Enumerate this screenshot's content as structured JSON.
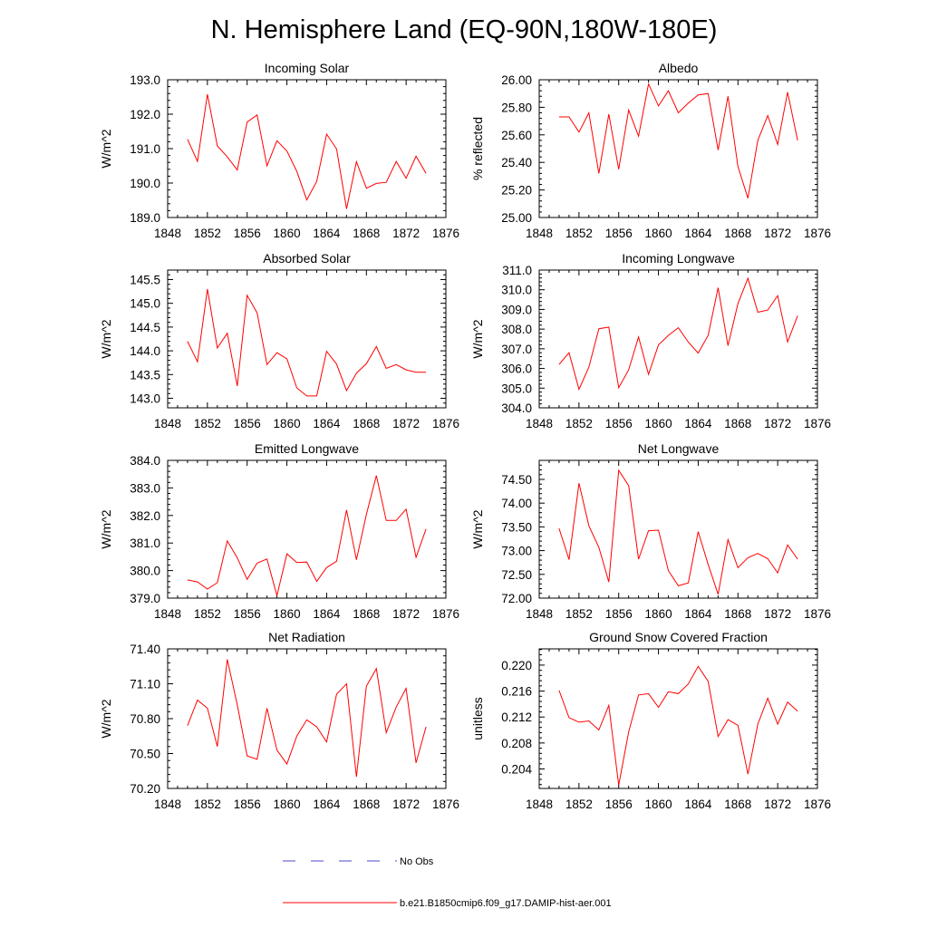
{
  "title": "N. Hemisphere Land (EQ-90N,180W-180E)",
  "chart_data": [
    {
      "type": "line",
      "title": "Incoming Solar",
      "ylabel": "W/m^2",
      "xlabel": "",
      "xlim": [
        1848,
        1876
      ],
      "ylim": [
        189.0,
        193.0
      ],
      "x_ticks": [
        "1848",
        "1852",
        "1856",
        "1860",
        "1864",
        "1868",
        "1872",
        "1876"
      ],
      "y_ticks": [
        "189.0",
        "190.0",
        "191.0",
        "192.0",
        "193.0"
      ],
      "x": [
        1850,
        1851,
        1852,
        1853,
        1854,
        1855,
        1856,
        1857,
        1858,
        1859,
        1860,
        1861,
        1862,
        1863,
        1864,
        1865,
        1866,
        1867,
        1868,
        1869,
        1870,
        1871,
        1872,
        1873,
        1874
      ],
      "series": [
        {
          "name": "b.e21.B1850cmip6.f09_g17.DAMIP-hist-aer.001",
          "color": "#ff0000",
          "values": [
            191.27,
            190.63,
            192.58,
            191.08,
            190.76,
            190.38,
            191.77,
            191.98,
            190.5,
            191.23,
            190.93,
            190.34,
            189.51,
            190.05,
            191.42,
            190.99,
            189.25,
            190.62,
            189.85,
            189.99,
            190.02,
            190.63,
            190.14,
            190.78,
            190.28
          ]
        }
      ]
    },
    {
      "type": "line",
      "title": "Albedo",
      "ylabel": "% reflected",
      "xlabel": "",
      "xlim": [
        1848,
        1876
      ],
      "ylim": [
        25.0,
        26.0
      ],
      "x_ticks": [
        "1848",
        "1852",
        "1856",
        "1860",
        "1864",
        "1868",
        "1872",
        "1876"
      ],
      "y_ticks": [
        "25.00",
        "25.20",
        "25.40",
        "25.60",
        "25.80",
        "26.00"
      ],
      "x": [
        1850,
        1851,
        1852,
        1853,
        1854,
        1855,
        1856,
        1857,
        1858,
        1859,
        1860,
        1861,
        1862,
        1863,
        1864,
        1865,
        1866,
        1867,
        1868,
        1869,
        1870,
        1871,
        1872,
        1873,
        1874
      ],
      "series": [
        {
          "name": "b.e21.B1850cmip6.f09_g17.DAMIP-hist-aer.001",
          "color": "#ff0000",
          "values": [
            25.73,
            25.73,
            25.62,
            25.76,
            25.32,
            25.75,
            25.35,
            25.78,
            25.59,
            25.97,
            25.81,
            25.92,
            25.76,
            25.83,
            25.89,
            25.9,
            25.49,
            25.88,
            25.37,
            25.14,
            25.56,
            25.74,
            25.53,
            25.91,
            25.56
          ]
        }
      ]
    },
    {
      "type": "line",
      "title": "Absorbed Solar",
      "ylabel": "W/m^2",
      "xlabel": "",
      "xlim": [
        1848,
        1876
      ],
      "ylim": [
        142.8,
        145.7
      ],
      "x_ticks": [
        "1848",
        "1852",
        "1856",
        "1860",
        "1864",
        "1868",
        "1872",
        "1876"
      ],
      "y_ticks": [
        "143.0",
        "143.5",
        "144.0",
        "144.5",
        "145.0",
        "145.5"
      ],
      "x": [
        1850,
        1851,
        1852,
        1853,
        1854,
        1855,
        1856,
        1857,
        1858,
        1859,
        1860,
        1861,
        1862,
        1863,
        1864,
        1865,
        1866,
        1867,
        1868,
        1869,
        1870,
        1871,
        1872,
        1873,
        1874
      ],
      "series": [
        {
          "name": "b.e21.B1850cmip6.f09_g17.DAMIP-hist-aer.001",
          "color": "#ff0000",
          "values": [
            144.2,
            143.77,
            145.3,
            144.06,
            144.37,
            143.26,
            145.17,
            144.8,
            143.71,
            143.96,
            143.83,
            143.22,
            143.05,
            143.05,
            143.99,
            143.72,
            143.16,
            143.53,
            143.73,
            144.09,
            143.63,
            143.71,
            143.6,
            143.55,
            143.55
          ]
        }
      ]
    },
    {
      "type": "line",
      "title": "Incoming Longwave",
      "ylabel": "W/m^2",
      "xlabel": "",
      "xlim": [
        1848,
        1876
      ],
      "ylim": [
        304.0,
        311.0
      ],
      "x_ticks": [
        "1848",
        "1852",
        "1856",
        "1860",
        "1864",
        "1868",
        "1872",
        "1876"
      ],
      "y_ticks": [
        "304.0",
        "305.0",
        "306.0",
        "307.0",
        "308.0",
        "309.0",
        "310.0",
        "311.0"
      ],
      "x": [
        1850,
        1851,
        1852,
        1853,
        1854,
        1855,
        1856,
        1857,
        1858,
        1859,
        1860,
        1861,
        1862,
        1863,
        1864,
        1865,
        1866,
        1867,
        1868,
        1869,
        1870,
        1871,
        1872,
        1873,
        1874
      ],
      "series": [
        {
          "name": "b.e21.B1850cmip6.f09_g17.DAMIP-hist-aer.001",
          "color": "#ff0000",
          "values": [
            306.2,
            306.8,
            304.94,
            306.07,
            308.02,
            308.1,
            305.02,
            305.93,
            307.6,
            305.7,
            307.2,
            307.68,
            308.07,
            307.34,
            306.78,
            307.68,
            310.1,
            307.16,
            309.3,
            310.58,
            308.86,
            308.97,
            309.7,
            307.35,
            308.68
          ]
        }
      ]
    },
    {
      "type": "line",
      "title": "Emitted Longwave",
      "ylabel": "W/m^2",
      "xlabel": "",
      "xlim": [
        1848,
        1876
      ],
      "ylim": [
        379.0,
        384.0
      ],
      "x_ticks": [
        "1848",
        "1852",
        "1856",
        "1860",
        "1864",
        "1868",
        "1872",
        "1876"
      ],
      "y_ticks": [
        "379.0",
        "380.0",
        "381.0",
        "382.0",
        "383.0",
        "384.0"
      ],
      "x": [
        1850,
        1851,
        1852,
        1853,
        1854,
        1855,
        1856,
        1857,
        1858,
        1859,
        1860,
        1861,
        1862,
        1863,
        1864,
        1865,
        1866,
        1867,
        1868,
        1869,
        1870,
        1871,
        1872,
        1873,
        1874
      ],
      "series": [
        {
          "name": "b.e21.B1850cmip6.f09_g17.DAMIP-hist-aer.001",
          "color": "#ff0000",
          "values": [
            379.66,
            379.59,
            379.33,
            379.56,
            381.08,
            380.46,
            379.68,
            380.27,
            380.42,
            379.09,
            380.61,
            380.29,
            380.31,
            379.61,
            380.11,
            380.34,
            382.2,
            380.39,
            382.04,
            383.45,
            381.82,
            381.82,
            382.23,
            380.48,
            381.51
          ]
        }
      ]
    },
    {
      "type": "line",
      "title": "Net Longwave",
      "ylabel": "W/m^2",
      "xlabel": "",
      "xlim": [
        1848,
        1876
      ],
      "ylim": [
        72.0,
        74.9
      ],
      "x_ticks": [
        "1848",
        "1852",
        "1856",
        "1860",
        "1864",
        "1868",
        "1872",
        "1876"
      ],
      "y_ticks": [
        "72.00",
        "72.50",
        "73.00",
        "73.50",
        "74.00",
        "74.50"
      ],
      "x": [
        1850,
        1851,
        1852,
        1853,
        1854,
        1855,
        1856,
        1857,
        1858,
        1859,
        1860,
        1861,
        1862,
        1863,
        1864,
        1865,
        1866,
        1867,
        1868,
        1869,
        1870,
        1871,
        1872,
        1873,
        1874
      ],
      "series": [
        {
          "name": "b.e21.B1850cmip6.f09_g17.DAMIP-hist-aer.001",
          "color": "#ff0000",
          "values": [
            73.47,
            72.81,
            74.42,
            73.52,
            73.07,
            72.34,
            74.69,
            74.37,
            72.82,
            73.42,
            73.43,
            72.58,
            72.26,
            72.32,
            73.4,
            72.71,
            72.08,
            73.23,
            72.64,
            72.85,
            72.94,
            72.83,
            72.53,
            73.12,
            72.82
          ]
        }
      ]
    },
    {
      "type": "line",
      "title": "Net Radiation",
      "ylabel": "W/m^2",
      "xlabel": "",
      "xlim": [
        1848,
        1876
      ],
      "ylim": [
        70.2,
        71.4
      ],
      "x_ticks": [
        "1848",
        "1852",
        "1856",
        "1860",
        "1864",
        "1868",
        "1872",
        "1876"
      ],
      "y_ticks": [
        "70.20",
        "70.50",
        "70.80",
        "71.10",
        "71.40"
      ],
      "x": [
        1850,
        1851,
        1852,
        1853,
        1854,
        1855,
        1856,
        1857,
        1858,
        1859,
        1860,
        1861,
        1862,
        1863,
        1864,
        1865,
        1866,
        1867,
        1868,
        1869,
        1870,
        1871,
        1872,
        1873,
        1874
      ],
      "series": [
        {
          "name": "b.e21.B1850cmip6.f09_g17.DAMIP-hist-aer.001",
          "color": "#ff0000",
          "values": [
            70.74,
            70.96,
            70.89,
            70.56,
            71.31,
            70.92,
            70.48,
            70.45,
            70.89,
            70.53,
            70.41,
            70.65,
            70.79,
            70.73,
            70.6,
            71.01,
            71.1,
            70.3,
            71.08,
            71.23,
            70.68,
            70.9,
            71.06,
            70.42,
            70.73
          ]
        }
      ]
    },
    {
      "type": "line",
      "title": "Ground Snow Covered Fraction",
      "ylabel": "unitless",
      "xlabel": "",
      "xlim": [
        1848,
        1876
      ],
      "ylim": [
        0.201,
        0.2225
      ],
      "x_ticks": [
        "1848",
        "1852",
        "1856",
        "1860",
        "1864",
        "1868",
        "1872",
        "1876"
      ],
      "y_ticks": [
        "0.204",
        "0.208",
        "0.212",
        "0.216",
        "0.220"
      ],
      "x": [
        1850,
        1851,
        1852,
        1853,
        1854,
        1855,
        1856,
        1857,
        1858,
        1859,
        1860,
        1861,
        1862,
        1863,
        1864,
        1865,
        1866,
        1867,
        1868,
        1869,
        1870,
        1871,
        1872,
        1873,
        1874
      ],
      "series": [
        {
          "name": "b.e21.B1850cmip6.f09_g17.DAMIP-hist-aer.001",
          "color": "#ff0000",
          "values": [
            0.2161,
            0.2119,
            0.2112,
            0.2114,
            0.21,
            0.2138,
            0.2015,
            0.2097,
            0.2154,
            0.2156,
            0.2135,
            0.2159,
            0.2156,
            0.2171,
            0.2198,
            0.2175,
            0.209,
            0.2116,
            0.2107,
            0.2032,
            0.2109,
            0.2149,
            0.2109,
            0.2143,
            0.2129
          ]
        }
      ]
    }
  ],
  "legend": [
    {
      "label": "No Obs",
      "color": "#4a4acf",
      "dash": true
    },
    {
      "label": "b.e21.B1850cmip6.f09_g17.DAMIP-hist-aer.001",
      "color": "#ff0000",
      "dash": false
    }
  ]
}
